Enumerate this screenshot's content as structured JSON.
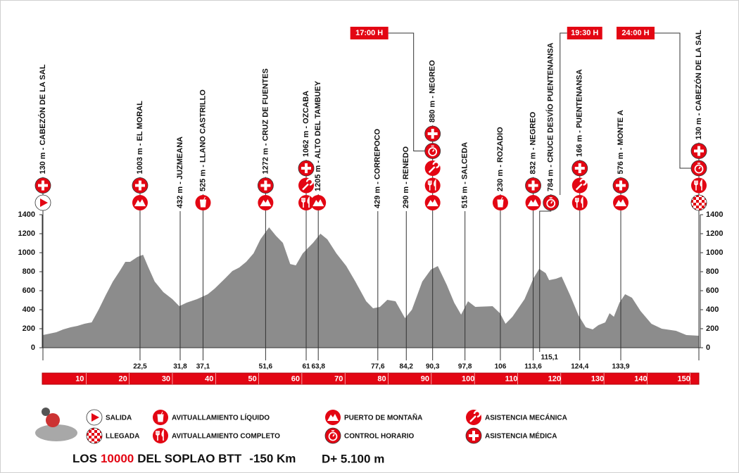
{
  "chart_data": {
    "type": "area",
    "color": "#8c8c8c",
    "x": [
      0,
      3.1,
      4.7,
      6.4,
      8.0,
      9.6,
      11.3,
      12.9,
      14.5,
      16.2,
      17.8,
      19.1,
      20.2,
      21.9,
      23.2,
      24.3,
      25.9,
      27.9,
      30.0,
      31.6,
      33.3,
      35.7,
      38.2,
      39.8,
      42.3,
      43.9,
      45.5,
      47.1,
      48.8,
      50.4,
      52.4,
      54.0,
      55.6,
      57.3,
      58.6,
      60.2,
      62.6,
      64.3,
      65.9,
      68.0,
      70.3,
      72.4,
      74.9,
      76.5,
      78.1,
      79.8,
      81.7,
      83.9,
      85.5,
      87.9,
      89.9,
      91.5,
      93.6,
      95.3,
      96.9,
      98.5,
      100.2,
      104.2,
      105.9,
      107.2,
      108.8,
      111.6,
      113.7,
      115.0,
      116.5,
      117.3,
      118.9,
      120.2,
      122.2,
      124.1,
      125.8,
      127.4,
      128.7,
      130.3,
      131.3,
      132.3,
      133.6,
      134.9,
      136.5,
      138.5,
      141.0,
      143.4,
      146.7,
      149.1,
      152.0
    ],
    "values": [
      133,
      163,
      193,
      215,
      230,
      252,
      267,
      400,
      548,
      696,
      807,
      904,
      904,
      956,
      978,
      859,
      696,
      585,
      511,
      437,
      474,
      511,
      563,
      622,
      733,
      807,
      844,
      904,
      993,
      1141,
      1267,
      1178,
      1104,
      881,
      867,
      993,
      1104,
      1200,
      1141,
      993,
      859,
      696,
      489,
      415,
      430,
      504,
      489,
      311,
      400,
      696,
      822,
      859,
      659,
      474,
      348,
      489,
      430,
      437,
      363,
      252,
      326,
      511,
      733,
      830,
      785,
      711,
      726,
      748,
      548,
      341,
      215,
      193,
      237,
      267,
      363,
      326,
      474,
      563,
      526,
      385,
      252,
      200,
      178,
      133,
      126
    ],
    "xlim": [
      0,
      152
    ],
    "ylim": [
      0,
      1400
    ],
    "yticks": [
      0,
      200,
      400,
      600,
      800,
      1000,
      1200,
      1400
    ],
    "xticks": [
      10,
      20,
      30,
      40,
      50,
      60,
      70,
      80,
      90,
      100,
      110,
      120,
      130,
      140,
      150
    ],
    "waypoints": [
      {
        "km": 0,
        "label": "130 m - CABEZÓN DE LA SAL",
        "icons": [
          "medical",
          "start"
        ]
      },
      {
        "km": 22.5,
        "km_label": "22,5",
        "label": "1003 m - EL MORAL",
        "icons": [
          "medical",
          "mountain"
        ]
      },
      {
        "km": 31.8,
        "km_label": "31,8",
        "label": "432 m - JUZMEANA",
        "icons": []
      },
      {
        "km": 37.1,
        "km_label": "37,1",
        "label": "525 m - LLANO CASTRILLO",
        "icons": [
          "liquid"
        ]
      },
      {
        "km": 51.6,
        "km_label": "51,6",
        "label": "1272 m - CRUZ DE FUENTES",
        "icons": [
          "medical",
          "mountain"
        ]
      },
      {
        "km": 61,
        "km_label": "61",
        "label": "1062 m - OZCABA",
        "icons": [
          "medical",
          "mechanic",
          "food"
        ]
      },
      {
        "km": 63.8,
        "km_label": "63,8",
        "label": "1205 m - ALTO DEL TAMBUEY",
        "icons": [
          "mountain"
        ]
      },
      {
        "km": 77.6,
        "km_label": "77,6",
        "label": "429 m - CORREPOCO",
        "icons": []
      },
      {
        "km": 84.2,
        "km_label": "84,2",
        "label": "290 m - RENEDO",
        "icons": []
      },
      {
        "km": 90.3,
        "km_label": "90,3",
        "label": "880 m - NEGREO",
        "icons": [
          "medical",
          "control",
          "mechanic",
          "food",
          "mountain"
        ],
        "time": "17:00 H"
      },
      {
        "km": 97.8,
        "km_label": "97,8",
        "label": "515 m - SALCEDA",
        "icons": []
      },
      {
        "km": 106,
        "km_label": "106",
        "label": "230 m - ROZADIO",
        "icons": [
          "liquid"
        ]
      },
      {
        "km": 113.6,
        "km_label": "113,6",
        "label": "832 m - NEGREO",
        "icons": [
          "medical",
          "mountain"
        ]
      },
      {
        "km": 115.1,
        "km_label": "115,1",
        "label": "784 m - CRUCE DESVÍO PUENTENANSA",
        "icons": [
          "control"
        ],
        "time": "19:30 H"
      },
      {
        "km": 124.4,
        "km_label": "124,4",
        "label": "166 m - PUENTENANSA",
        "icons": [
          "medical",
          "mechanic",
          "food"
        ]
      },
      {
        "km": 133.9,
        "km_label": "133,9",
        "label": "576 m - MONTE A",
        "icons": [
          "medical",
          "mountain"
        ]
      },
      {
        "km": 152,
        "label": "130 m - CABEZÓN DE LA SAL",
        "icons": [
          "medical",
          "control",
          "food",
          "finish"
        ],
        "time": "24:00 H"
      }
    ],
    "legend": [
      {
        "icon": "start",
        "label": "SALIDA"
      },
      {
        "icon": "finish",
        "label": "LLEGADA"
      },
      {
        "icon": "liquid",
        "label": "AVITUALLAMIENTO LÍQUIDO"
      },
      {
        "icon": "food",
        "label": "AVITUALLAMIENTO COMPLETO"
      },
      {
        "icon": "mountain",
        "label": "PUERTO DE MONTAÑA"
      },
      {
        "icon": "control",
        "label": "CONTROL HORARIO"
      },
      {
        "icon": "mechanic",
        "label": "ASISTENCIA MECÁNICA"
      },
      {
        "icon": "medical",
        "label": "ASISTENCIA MÉDICA"
      }
    ],
    "title_parts": [
      "LOS",
      "10000",
      "DEL SOPLAO BTT",
      "-150 Km"
    ],
    "subtitle": "D+ 5.100 m"
  }
}
